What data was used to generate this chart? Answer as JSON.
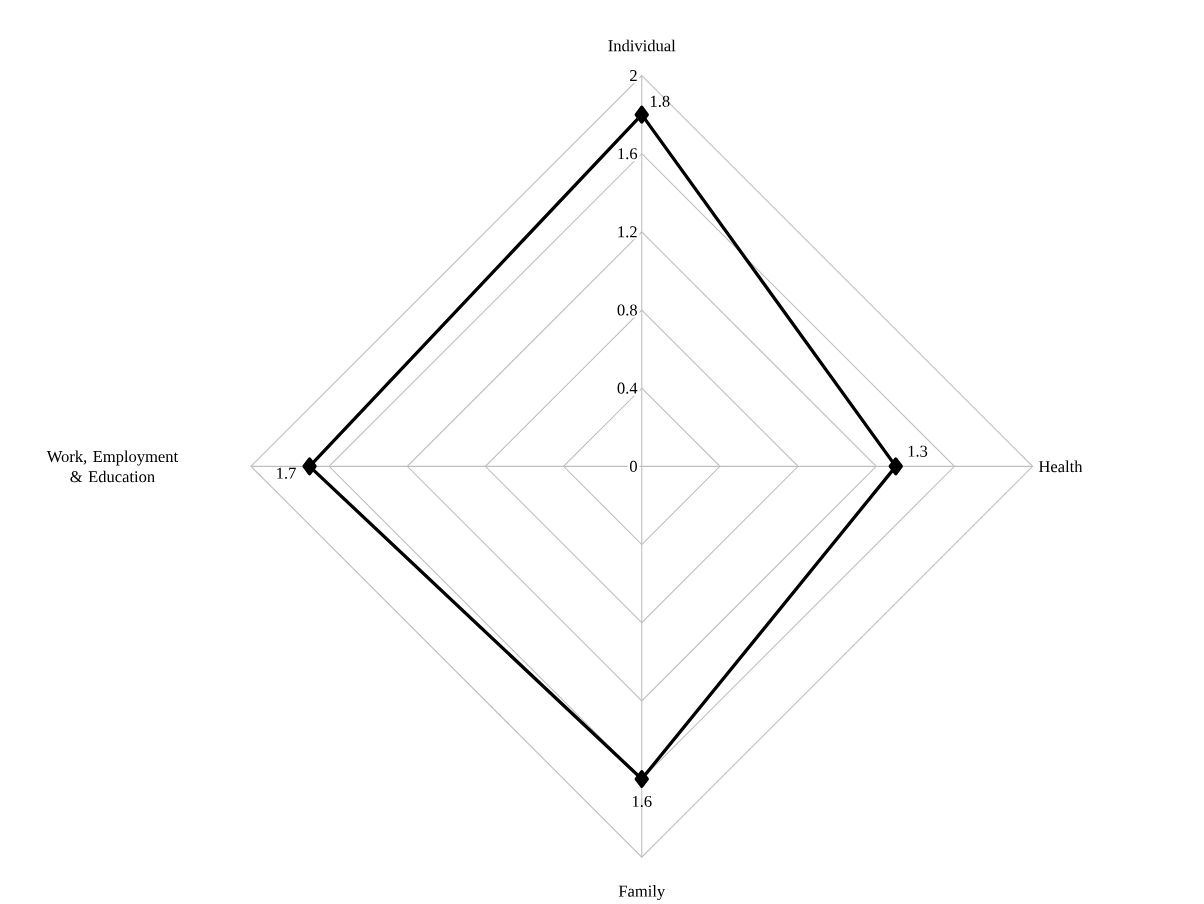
{
  "chart_data": {
    "type": "radar",
    "categories": [
      "Individual",
      "Health",
      "Family",
      "Work, Employment & Education"
    ],
    "series": [
      {
        "color": "#000000",
        "values": [
          1.8,
          1.3,
          1.6,
          1.7
        ]
      }
    ],
    "ylim": [
      0,
      2
    ],
    "yticks": [
      0,
      0.4,
      0.8,
      1.2,
      1.6,
      2
    ],
    "grid": true,
    "data_labels": true,
    "marker": "diamond",
    "line_style": "solid"
  }
}
